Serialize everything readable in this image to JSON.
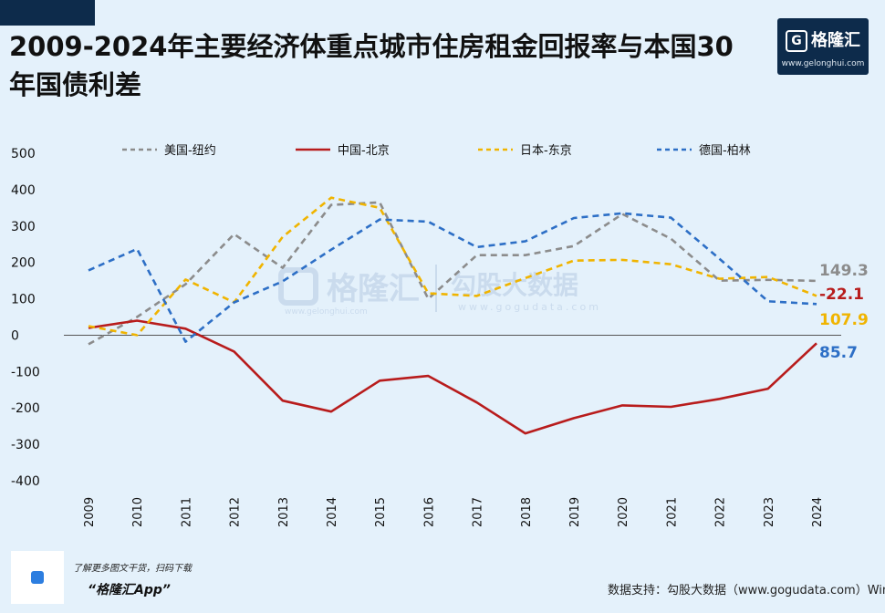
{
  "title": "2009-2024年主要经济体重点城市住房租金回报率与本国30年国债利差",
  "logo": {
    "name": "格隆汇",
    "mark": "G",
    "url": "www.gelonghui.com"
  },
  "watermark": {
    "left_name": "格隆汇",
    "left_url": "www.gelonghui.com",
    "right_name": "勾股大数据",
    "right_url": "www.gogudata.com"
  },
  "chart_data": {
    "type": "line",
    "title": "",
    "xlabel": "",
    "ylabel": "",
    "categories": [
      "2009",
      "2010",
      "2011",
      "2012",
      "2013",
      "2014",
      "2015",
      "2016",
      "2017",
      "2018",
      "2019",
      "2020",
      "2021",
      "2022",
      "2023",
      "2024"
    ],
    "ylim": [
      -400,
      500
    ],
    "yticks": [
      500,
      400,
      300,
      200,
      100,
      0,
      -100,
      -200,
      -300,
      -400
    ],
    "legend_position": "top",
    "series": [
      {
        "name": "美国-纽约",
        "color": "#8c8c8c",
        "dashed": true,
        "end_label": "149.3",
        "values": [
          -25,
          50,
          140,
          278,
          185,
          358,
          365,
          100,
          220,
          220,
          245,
          333,
          265,
          150,
          152,
          149.3
        ]
      },
      {
        "name": "中国-北京",
        "color": "#b81c1c",
        "dashed": false,
        "end_label": "-22.1",
        "values": [
          20,
          40,
          18,
          -45,
          -180,
          -210,
          -125,
          -112,
          -185,
          -270,
          -228,
          -193,
          -197,
          -175,
          -147,
          -22.1
        ]
      },
      {
        "name": "日本-东京",
        "color": "#f0b400",
        "dashed": true,
        "end_label": "107.9",
        "values": [
          25,
          0,
          153,
          90,
          270,
          378,
          350,
          115,
          108,
          157,
          205,
          207,
          195,
          155,
          160,
          107.9
        ]
      },
      {
        "name": "德国-柏林",
        "color": "#2d6fc6",
        "dashed": true,
        "end_label": "85.7",
        "values": [
          178,
          237,
          -18,
          90,
          148,
          235,
          318,
          312,
          242,
          258,
          322,
          335,
          323,
          210,
          93,
          85.7
        ]
      }
    ]
  },
  "footer": {
    "hint": "了解更多图文干货，扫码下载",
    "app": "“格隆汇App”",
    "source": "数据支持：勾股大数据（www.gogudata.com）Wind"
  }
}
